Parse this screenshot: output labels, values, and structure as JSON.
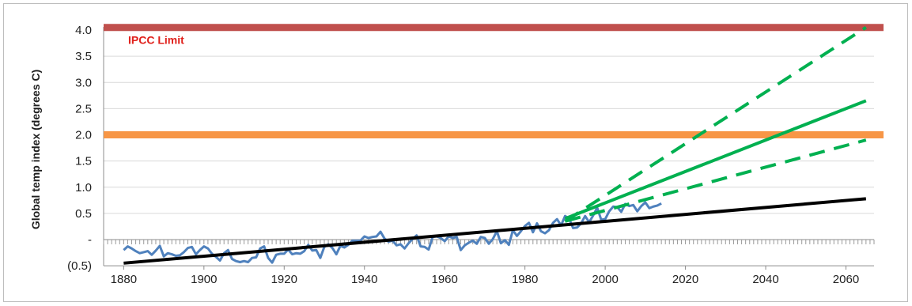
{
  "chart_data": {
    "type": "line",
    "title": "",
    "xlabel": "",
    "ylabel": "Global temp index (degrees C)",
    "xlim": [
      1875,
      2067
    ],
    "ylim": [
      -0.5,
      4.0
    ],
    "x_ticks": [
      1880,
      1900,
      1920,
      1940,
      1960,
      1980,
      2000,
      2020,
      2040,
      2060
    ],
    "y_ticks": [
      -0.5,
      0,
      0.5,
      1.0,
      1.5,
      2.0,
      2.5,
      3.0,
      3.5,
      4.0
    ],
    "y_tick_labels": [
      "(0.5)",
      "-",
      "0.5",
      "1.0",
      "1.5",
      "2.0",
      "2.5",
      "3.0",
      "3.5",
      "4.0"
    ],
    "grid": "horizontal",
    "reference_lines": [
      {
        "label": "IPCC Limit",
        "y": 4.05,
        "color": "#c0504d",
        "label_color": "#e0201b"
      },
      {
        "label": "",
        "y": 2.0,
        "color": "#f79646"
      }
    ],
    "series": [
      {
        "style": "solid",
        "color": "#4f81bd",
        "x": [
          1880,
          1881,
          1882,
          1883,
          1884,
          1885,
          1886,
          1887,
          1888,
          1889,
          1890,
          1891,
          1892,
          1893,
          1894,
          1895,
          1896,
          1897,
          1898,
          1899,
          1900,
          1901,
          1902,
          1903,
          1904,
          1905,
          1906,
          1907,
          1908,
          1909,
          1910,
          1911,
          1912,
          1913,
          1914,
          1915,
          1916,
          1917,
          1918,
          1919,
          1920,
          1921,
          1922,
          1923,
          1924,
          1925,
          1926,
          1927,
          1928,
          1929,
          1930,
          1931,
          1932,
          1933,
          1934,
          1935,
          1936,
          1937,
          1938,
          1939,
          1940,
          1941,
          1942,
          1943,
          1944,
          1945,
          1946,
          1947,
          1948,
          1949,
          1950,
          1951,
          1952,
          1953,
          1954,
          1955,
          1956,
          1957,
          1958,
          1959,
          1960,
          1961,
          1962,
          1963,
          1964,
          1965,
          1966,
          1967,
          1968,
          1969,
          1970,
          1971,
          1972,
          1973,
          1974,
          1975,
          1976,
          1977,
          1978,
          1979,
          1980,
          1981,
          1982,
          1983,
          1984,
          1985,
          1986,
          1987,
          1988,
          1989,
          1990,
          1991,
          1992,
          1993,
          1994,
          1995,
          1996,
          1997,
          1998,
          1999,
          2000,
          2001,
          2002,
          2003,
          2004,
          2005,
          2006,
          2007,
          2008,
          2009,
          2010,
          2011,
          2012,
          2013,
          2014
        ],
        "y": [
          -0.2,
          -0.13,
          -0.17,
          -0.22,
          -0.26,
          -0.24,
          -0.22,
          -0.29,
          -0.21,
          -0.12,
          -0.32,
          -0.26,
          -0.28,
          -0.31,
          -0.3,
          -0.24,
          -0.16,
          -0.14,
          -0.28,
          -0.2,
          -0.13,
          -0.17,
          -0.27,
          -0.33,
          -0.4,
          -0.26,
          -0.2,
          -0.37,
          -0.41,
          -0.43,
          -0.41,
          -0.43,
          -0.35,
          -0.34,
          -0.17,
          -0.13,
          -0.35,
          -0.44,
          -0.29,
          -0.27,
          -0.27,
          -0.19,
          -0.28,
          -0.26,
          -0.27,
          -0.22,
          -0.1,
          -0.21,
          -0.2,
          -0.35,
          -0.14,
          -0.09,
          -0.16,
          -0.28,
          -0.12,
          -0.15,
          -0.1,
          -0.02,
          -0.02,
          -0.02,
          0.06,
          0.03,
          0.05,
          0.06,
          0.15,
          0.02,
          -0.04,
          -0.02,
          -0.11,
          -0.09,
          -0.17,
          -0.07,
          0.01,
          0.08,
          -0.13,
          -0.14,
          -0.19,
          0.05,
          0.06,
          0.03,
          -0.03,
          0.06,
          0.03,
          0.05,
          -0.2,
          -0.11,
          -0.06,
          -0.02,
          -0.08,
          0.05,
          0.03,
          -0.08,
          0.01,
          0.16,
          -0.07,
          -0.01,
          -0.1,
          0.18,
          0.07,
          0.16,
          0.26,
          0.32,
          0.14,
          0.31,
          0.16,
          0.12,
          0.18,
          0.32,
          0.39,
          0.27,
          0.45,
          0.4,
          0.22,
          0.23,
          0.31,
          0.45,
          0.33,
          0.46,
          0.61,
          0.38,
          0.39,
          0.54,
          0.63,
          0.62,
          0.53,
          0.68,
          0.64,
          0.66,
          0.54,
          0.64,
          0.71,
          0.6,
          0.63,
          0.65,
          0.69
        ]
      },
      {
        "style": "solid",
        "color": "#000000",
        "x": [
          1880,
          2065
        ],
        "y": [
          -0.45,
          0.78
        ]
      },
      {
        "style": "solid",
        "color": "#00b050",
        "x": [
          1990,
          2065
        ],
        "y": [
          0.4,
          2.65
        ]
      },
      {
        "style": "dashed",
        "color": "#00b050",
        "x": [
          1990,
          2065
        ],
        "y": [
          0.35,
          4.05
        ]
      },
      {
        "style": "dashed",
        "color": "#00b050",
        "x": [
          1990,
          2065
        ],
        "y": [
          0.35,
          1.9
        ]
      }
    ]
  }
}
